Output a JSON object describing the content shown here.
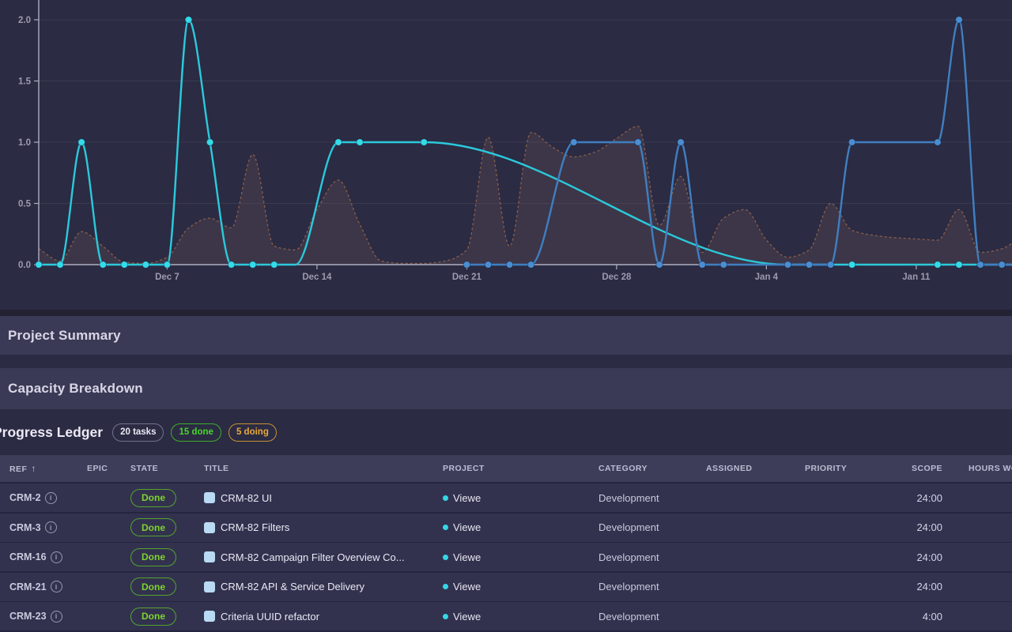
{
  "chart_data": {
    "type": "line",
    "title": "",
    "grid": true,
    "legend_position": "none",
    "x_axis": {
      "ticks": [
        {
          "day": 6,
          "label": "Dec 7"
        },
        {
          "day": 13,
          "label": "Dec 14"
        },
        {
          "day": 20,
          "label": "Dec 21"
        },
        {
          "day": 27,
          "label": "Dec 28"
        },
        {
          "day": 34,
          "label": "Jan 4"
        },
        {
          "day": 41,
          "label": "Jan 11"
        }
      ]
    },
    "y_axis": {
      "min": 0,
      "max": 2,
      "ticks": [
        {
          "v": 0,
          "label": "0.0"
        },
        {
          "v": 0.5,
          "label": "0.5"
        },
        {
          "v": 1,
          "label": "1.0"
        },
        {
          "v": 1.5,
          "label": "1.5"
        },
        {
          "v": 2,
          "label": "2.0"
        }
      ]
    },
    "series": [
      {
        "name": "effort-overlay-area",
        "type": "area-dashed",
        "stroke": "#8a5f48",
        "fill": "rgba(180,130,110,0.14)",
        "points": [
          [
            0,
            0.13
          ],
          [
            1,
            0.03
          ],
          [
            2,
            0.27
          ],
          [
            3,
            0.15
          ],
          [
            4,
            0.02
          ],
          [
            5,
            0.01
          ],
          [
            6,
            0.06
          ],
          [
            7,
            0.3
          ],
          [
            8,
            0.38
          ],
          [
            9,
            0.3
          ],
          [
            10,
            0.9
          ],
          [
            11,
            0.15
          ],
          [
            12,
            0.12
          ],
          [
            13,
            0.45
          ],
          [
            14,
            0.69
          ],
          [
            15,
            0.33
          ],
          [
            16,
            0.03
          ],
          [
            17,
            0.01
          ],
          [
            18,
            0.01
          ],
          [
            19,
            0.03
          ],
          [
            20,
            0.12
          ],
          [
            21,
            1.04
          ],
          [
            22,
            0.15
          ],
          [
            23,
            1.08
          ],
          [
            24,
            0.96
          ],
          [
            25,
            0.88
          ],
          [
            26,
            0.92
          ],
          [
            27,
            1.03
          ],
          [
            28,
            1.13
          ],
          [
            29,
            0.32
          ],
          [
            30,
            0.72
          ],
          [
            31,
            0.1
          ],
          [
            32,
            0.38
          ],
          [
            33,
            0.45
          ],
          [
            34,
            0.2
          ],
          [
            35,
            0.06
          ],
          [
            36,
            0.12
          ],
          [
            37,
            0.5
          ],
          [
            38,
            0.28
          ],
          [
            39,
            0.24
          ],
          [
            40,
            0.22
          ],
          [
            41,
            0.21
          ],
          [
            42,
            0.2
          ],
          [
            43,
            0.45
          ],
          [
            44,
            0.1
          ],
          [
            45,
            0.13
          ],
          [
            47,
            0.45
          ]
        ]
      },
      {
        "name": "completed-tasks-cyan",
        "type": "line",
        "stroke": "#2bc9da",
        "marker": "#35dbe9",
        "points": [
          [
            0,
            0,
            1
          ],
          [
            1,
            0,
            1
          ],
          [
            2,
            1,
            1
          ],
          [
            3,
            0,
            1
          ],
          [
            4,
            0,
            1
          ],
          [
            5,
            0,
            1
          ],
          [
            6,
            0,
            1
          ],
          [
            7,
            2,
            1
          ],
          [
            8,
            1,
            1
          ],
          [
            9,
            0,
            1
          ],
          [
            10,
            0,
            1
          ],
          [
            11,
            0,
            1
          ],
          [
            12,
            0,
            0
          ],
          [
            14,
            1,
            1
          ],
          [
            15,
            1,
            1
          ],
          [
            18,
            1,
            1
          ],
          [
            35,
            0,
            0
          ],
          [
            38,
            0,
            1
          ],
          [
            42,
            0,
            1
          ],
          [
            43,
            0,
            1
          ],
          [
            44,
            0,
            1
          ],
          [
            45,
            0,
            1
          ],
          [
            46.5,
            0,
            0
          ]
        ]
      },
      {
        "name": "started-tasks-blue",
        "type": "line",
        "stroke": "#3f7fc0",
        "marker": "#4a8ed2",
        "points": [
          [
            20,
            0,
            1
          ],
          [
            21,
            0,
            1
          ],
          [
            22,
            0,
            1
          ],
          [
            23,
            0,
            1
          ],
          [
            25,
            1,
            1
          ],
          [
            28,
            1,
            1
          ],
          [
            29,
            0,
            1
          ],
          [
            30,
            1,
            1
          ],
          [
            31,
            0,
            1
          ],
          [
            32,
            0,
            1
          ],
          [
            35,
            0,
            1
          ],
          [
            36,
            0,
            1
          ],
          [
            37,
            0,
            1
          ],
          [
            38,
            1,
            1
          ],
          [
            42,
            1,
            1
          ],
          [
            43,
            2,
            1
          ],
          [
            44,
            0,
            1
          ],
          [
            45,
            0,
            1
          ],
          [
            46.5,
            0,
            0
          ]
        ]
      }
    ],
    "layout": {
      "x0": 49,
      "day_width": 27.07,
      "y_baseline": 335,
      "unit_height": 155,
      "grid_color": "rgba(255,255,255,0.07)",
      "axis_color": "#aeaec2",
      "label_color": "#9c9ab0"
    }
  },
  "sections": {
    "project_summary": "Project Summary",
    "capacity_breakdown": "Capacity Breakdown"
  },
  "ledger": {
    "title": "Progress Ledger",
    "badges": [
      {
        "label": "20 tasks",
        "style": "gray"
      },
      {
        "label": "15 done",
        "style": "green"
      },
      {
        "label": "5 doing",
        "style": "amber"
      }
    ],
    "sort_arrow": "↑",
    "columns": [
      {
        "key": "ref",
        "label": "REF"
      },
      {
        "key": "epic",
        "label": "EPIC"
      },
      {
        "key": "state",
        "label": "STATE"
      },
      {
        "key": "title",
        "label": "TITLE"
      },
      {
        "key": "project",
        "label": "PROJECT"
      },
      {
        "key": "category",
        "label": "CATEGORY"
      },
      {
        "key": "assigned",
        "label": "ASSIGNED"
      },
      {
        "key": "priority",
        "label": "PRIORITY"
      },
      {
        "key": "scope",
        "label": "SCOPE"
      },
      {
        "key": "hours",
        "label": "HOURS WORKED"
      }
    ],
    "rows": [
      {
        "ref": "CRM-2",
        "epic": "",
        "state": "Done",
        "title": "CRM-82 UI",
        "project": "Viewe",
        "category": "Development",
        "assigned": "",
        "priority": "",
        "scope": "24:00",
        "hours": ""
      },
      {
        "ref": "CRM-3",
        "epic": "",
        "state": "Done",
        "title": "CRM-82 Filters",
        "project": "Viewe",
        "category": "Development",
        "assigned": "",
        "priority": "",
        "scope": "24:00",
        "hours": ""
      },
      {
        "ref": "CRM-16",
        "epic": "",
        "state": "Done",
        "title": "CRM-82 Campaign Filter Overview Co...",
        "project": "Viewe",
        "category": "Development",
        "assigned": "",
        "priority": "",
        "scope": "24:00",
        "hours": ""
      },
      {
        "ref": "CRM-21",
        "epic": "",
        "state": "Done",
        "title": "CRM-82 API & Service Delivery",
        "project": "Viewe",
        "category": "Development",
        "assigned": "",
        "priority": "",
        "scope": "24:00",
        "hours": ""
      },
      {
        "ref": "CRM-23",
        "epic": "",
        "state": "Done",
        "title": "Criteria UUID refactor",
        "project": "Viewe",
        "category": "Development",
        "assigned": "",
        "priority": "",
        "scope": "4:00",
        "hours": ""
      }
    ],
    "colors": {
      "done_border": "#55a32e",
      "done_text": "#7ed32f",
      "project_dot": "#36d6e4",
      "title_icon": "#b9daf3"
    }
  }
}
